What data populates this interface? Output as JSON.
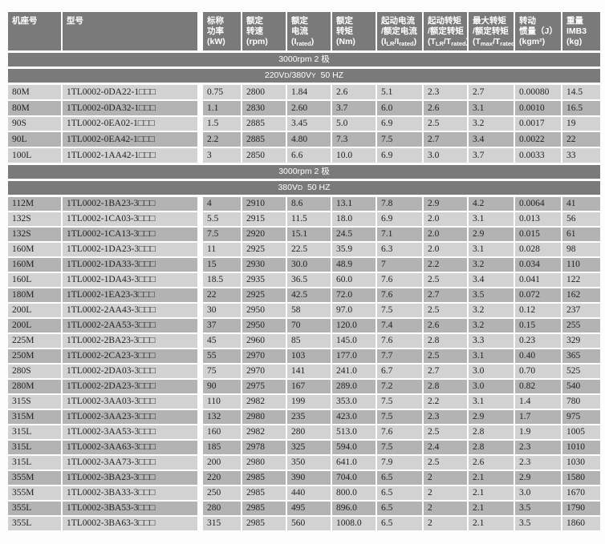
{
  "table": {
    "colors": {
      "header_bg": "#7a7a7a",
      "band_bg": "#7a7a7a",
      "row_light": "#d2d2d2",
      "row_dark": "#b3b3b3",
      "header_text": "#ffffff",
      "cell_text": "#222222"
    },
    "columns": [
      {
        "key": "frame-size",
        "label_lines": [
          "机座号"
        ],
        "unit_parts": []
      },
      {
        "key": "model",
        "label_lines": [
          "型号"
        ],
        "unit_parts": []
      },
      {
        "key": "rated-power",
        "label_lines": [
          "标称",
          "功率"
        ],
        "unit_parts": [
          {
            "t": "(kW)"
          }
        ]
      },
      {
        "key": "rated-speed",
        "label_lines": [
          "额定",
          "转速"
        ],
        "unit_parts": [
          {
            "t": "(rpm)"
          }
        ]
      },
      {
        "key": "rated-current",
        "label_lines": [
          "额定",
          "电流"
        ],
        "unit_parts": [
          {
            "t": "(I"
          },
          {
            "t": "rated",
            "sub": true
          },
          {
            "t": ")"
          }
        ]
      },
      {
        "key": "rated-torque",
        "label_lines": [
          "额定",
          "转矩"
        ],
        "unit_parts": [
          {
            "t": "(Nm)"
          }
        ]
      },
      {
        "key": "locked-rotor-current-ratio",
        "label_lines": [
          "起动电流",
          "/额定电流"
        ],
        "unit_parts": [
          {
            "t": "(I"
          },
          {
            "t": "LR",
            "sub": true
          },
          {
            "t": "/I"
          },
          {
            "t": "rated",
            "sub": true
          },
          {
            "t": ")"
          }
        ]
      },
      {
        "key": "locked-rotor-torque-ratio",
        "label_lines": [
          "起动转矩",
          "/额定转矩"
        ],
        "unit_parts": [
          {
            "t": "(T"
          },
          {
            "t": "LR",
            "sub": true
          },
          {
            "t": "/T"
          },
          {
            "t": "rated",
            "sub": true
          },
          {
            "t": ")"
          }
        ]
      },
      {
        "key": "max-torque-ratio",
        "label_lines": [
          "最大转矩",
          "/额定转矩"
        ],
        "unit_parts": [
          {
            "t": "(T"
          },
          {
            "t": "max",
            "sub": true
          },
          {
            "t": "/T"
          },
          {
            "t": "rated",
            "sub": true
          },
          {
            "t": ")"
          }
        ]
      },
      {
        "key": "inertia",
        "label_lines": [
          "转动",
          "惯量（J）"
        ],
        "unit_parts": [
          {
            "t": "(kgm²)"
          }
        ]
      },
      {
        "key": "weight",
        "label_lines": [
          "重量",
          "IMB3"
        ],
        "unit_parts": [
          {
            "t": "(kg)"
          }
        ]
      }
    ],
    "sections": [
      {
        "first_row_shade": "light",
        "bands": [
          [
            {
              "t": "3000rpm 2 极"
            }
          ],
          [
            {
              "t": "220V"
            },
            {
              "t": "D",
              "small": true
            },
            {
              "t": "/380V"
            },
            {
              "t": "Y",
              "small": true
            },
            {
              "t": "  50 HZ"
            }
          ]
        ],
        "rows": [
          [
            "80M",
            "1TL0002-0DA22-1□□□",
            "0.75",
            "2800",
            "1.84",
            "2.6",
            "5.1",
            "2.3",
            "2.7",
            "0.00080",
            "14.5"
          ],
          [
            "80M",
            "1TL0002-0DA32-1□□□",
            "1.1",
            "2830",
            "2.60",
            "3.7",
            "6.0",
            "2.6",
            "3.1",
            "0.0010",
            "16.5"
          ],
          [
            "90S",
            "1TL0002-0EA02-1□□□",
            "1.5",
            "2885",
            "3.45",
            "5.0",
            "6.9",
            "2.5",
            "3.2",
            "0.0017",
            "19"
          ],
          [
            "90L",
            "1TL0002-0EA42-1□□□",
            "2.2",
            "2885",
            "4.80",
            "7.3",
            "7.5",
            "2.7",
            "3.4",
            "0.0022",
            "22"
          ],
          [
            "100L",
            "1TL0002-1AA42-1□□□",
            "3",
            "2850",
            "6.6",
            "10.0",
            "6.9",
            "3.0",
            "3.7",
            "0.0033",
            "33"
          ]
        ]
      },
      {
        "first_row_shade": "dark",
        "bands": [
          [
            {
              "t": "3000rpm 2 极"
            }
          ],
          [
            {
              "t": "380V"
            },
            {
              "t": "D",
              "small": true
            },
            {
              "t": "  50 HZ"
            }
          ]
        ],
        "rows": [
          [
            "112M",
            "1TL0002-1BA23-3□□□",
            "4",
            "2910",
            "8.6",
            "13.1",
            "7.8",
            "2.9",
            "4.2",
            "0.0064",
            "41"
          ],
          [
            "132S",
            "1TL0002-1CA03-3□□□",
            "5.5",
            "2915",
            "11.5",
            "18.0",
            "6.9",
            "2.0",
            "3.1",
            "0.013",
            "56"
          ],
          [
            "132S",
            "1TL0002-1CA13-3□□□",
            "7.5",
            "2920",
            "15.1",
            "24.5",
            "7.1",
            "2.0",
            "2.9",
            "0.015",
            "61"
          ],
          [
            "160M",
            "1TL0002-1DA23-3□□□",
            "11",
            "2925",
            "22.5",
            "35.9",
            "6.3",
            "2.0",
            "3.1",
            "0.028",
            "98"
          ],
          [
            "160M",
            "1TL0002-1DA33-3□□□",
            "15",
            "2930",
            "30.0",
            "48.9",
            "7",
            "2.2",
            "3.2",
            "0.034",
            "110"
          ],
          [
            "160L",
            "1TL0002-1DA43-3□□□",
            "18.5",
            "2935",
            "36.5",
            "60.0",
            "7.6",
            "2.5",
            "3.4",
            "0.041",
            "122"
          ],
          [
            "180M",
            "1TL0002-1EA23-3□□□",
            "22",
            "2925",
            "42.5",
            "72.0",
            "7.6",
            "2.7",
            "3.5",
            "0.072",
            "162"
          ],
          [
            "200L",
            "1TL0002-2AA43-3□□□",
            "30",
            "2950",
            "58",
            "97.0",
            "7.5",
            "2.5",
            "3.2",
            "0.12",
            "237"
          ],
          [
            "200L",
            "1TL0002-2AA53-3□□□",
            "37",
            "2950",
            "70",
            "120.0",
            "7.4",
            "2.6",
            "3.2",
            "0.15",
            "255"
          ],
          [
            "225M",
            "1TL0002-2BA23-3□□□",
            "45",
            "2960",
            "85",
            "145.0",
            "7.6",
            "2.8",
            "3.3",
            "0.23",
            "329"
          ],
          [
            "250M",
            "1TL0002-2CA23-3□□□",
            "55",
            "2970",
            "103",
            "177.0",
            "7.7",
            "2.5",
            "3.1",
            "0.40",
            "365"
          ],
          [
            "280S",
            "1TL0002-2DA03-3□□□",
            "75",
            "2970",
            "141",
            "241.0",
            "6.7",
            "2.7",
            "3.0",
            "0.70",
            "525"
          ],
          [
            "280M",
            "1TL0002-2DA23-3□□□",
            "90",
            "2975",
            "167",
            "289.0",
            "7.2",
            "2.8",
            "3.0",
            "0.82",
            "540"
          ],
          [
            "315S",
            "1TL0002-3AA03-3□□□",
            "110",
            "2982",
            "199",
            "353.0",
            "7.5",
            "2.2",
            "3.1",
            "1.4",
            "780"
          ],
          [
            "315M",
            "1TL0002-3AA23-3□□□",
            "132",
            "2980",
            "235",
            "423.0",
            "7.5",
            "2.3",
            "2.9",
            "1.7",
            "975"
          ],
          [
            "315L",
            "1TL0002-3AA53-3□□□",
            "160",
            "2982",
            "280",
            "513.0",
            "7.6",
            "2.5",
            "2.8",
            "1.9",
            "1005"
          ],
          [
            "315L",
            "1TL0002-3AA63-3□□□",
            "185",
            "2978",
            "325",
            "594.0",
            "7.5",
            "2.4",
            "2.8",
            "2.3",
            "1010"
          ],
          [
            "315L",
            "1TL0002-3AA73-3□□□",
            "200",
            "2980",
            "350",
            "641.0",
            "7.9",
            "2.5",
            "2.6",
            "2.3",
            "1030"
          ],
          [
            "355M",
            "1TL0002-3BA23-3□□□",
            "220",
            "2985",
            "390",
            "704.0",
            "6.5",
            "2",
            "2.1",
            "2.9",
            "1580"
          ],
          [
            "355M",
            "1TL0002-3BA33-3□□□",
            "250",
            "2985",
            "440",
            "800.0",
            "6.5",
            "2",
            "2.1",
            "3.0",
            "1670"
          ],
          [
            "355L",
            "1TL0002-3BA53-3□□□",
            "280",
            "2985",
            "495",
            "896.0",
            "6.5",
            "2",
            "2.1",
            "3.5",
            "1790"
          ],
          [
            "355L",
            "1TL0002-3BA63-3□□□",
            "315",
            "2985",
            "560",
            "1008.0",
            "6.5",
            "2",
            "2.1",
            "3.5",
            "1860"
          ]
        ]
      }
    ]
  }
}
